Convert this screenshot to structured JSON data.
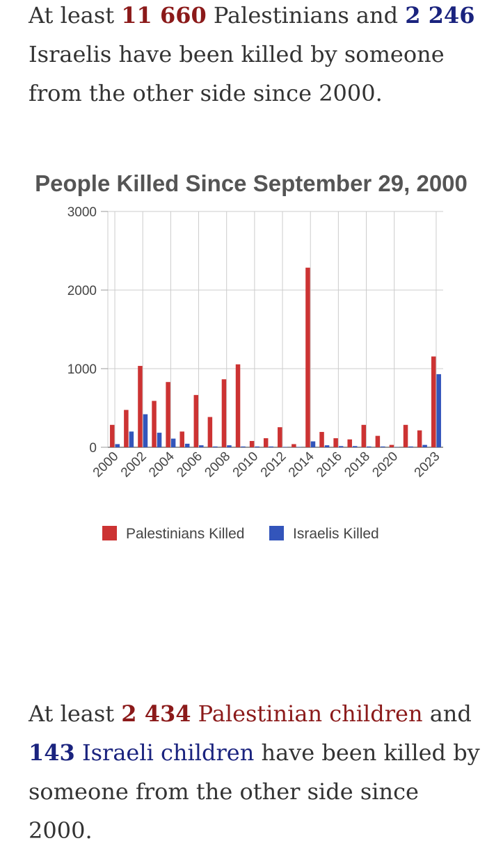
{
  "intro": {
    "prefix": "At least ",
    "pal_count": "11 660",
    "mid": " Palestinians and ",
    "isr_count": "2 246",
    "suffix": " Israelis have been killed by someone from the other side since 2000."
  },
  "children": {
    "prefix": "At least ",
    "pal_count": "2 434",
    "pal_label": " Palestinian children",
    "mid": " and ",
    "isr_count": "143",
    "isr_label": " Israeli children",
    "suffix": " have been killed by someone from the other side since 2000."
  },
  "chart_data": {
    "type": "bar",
    "title": "People Killed Since September 29, 2000",
    "xlabel": "",
    "ylabel": "",
    "ylim": [
      0,
      3000
    ],
    "yticks": [
      "0",
      "1000",
      "2000",
      "3000"
    ],
    "categories": [
      "2000",
      "2001",
      "2002",
      "2003",
      "2004",
      "2005",
      "2006",
      "2007",
      "2008",
      "2009",
      "2010",
      "2011",
      "2012",
      "2013",
      "2014",
      "2015",
      "2016",
      "2017",
      "2018",
      "2019",
      "2020",
      "2021",
      "2022",
      "2023"
    ],
    "xtick_labels": [
      "2000",
      "",
      "2002",
      "",
      "2004",
      "",
      "2006",
      "",
      "2008",
      "",
      "2010",
      "",
      "2012",
      "",
      "2014",
      "",
      "2016",
      "",
      "2018",
      "",
      "2020",
      "",
      "",
      "2023"
    ],
    "series": [
      {
        "name": "Palestinians Killed",
        "color": "#cc3333",
        "values": [
          285,
          475,
          1035,
          590,
          830,
          200,
          665,
          385,
          865,
          1055,
          80,
          115,
          255,
          40,
          2285,
          195,
          115,
          100,
          285,
          145,
          30,
          285,
          215,
          1155
        ]
      },
      {
        "name": "Israelis Killed",
        "color": "#3355bb",
        "values": [
          40,
          200,
          420,
          185,
          110,
          45,
          25,
          10,
          25,
          10,
          10,
          10,
          5,
          5,
          75,
          25,
          15,
          15,
          10,
          10,
          3,
          10,
          30,
          930
        ]
      }
    ],
    "grid": true,
    "legend": "bottom-center"
  }
}
